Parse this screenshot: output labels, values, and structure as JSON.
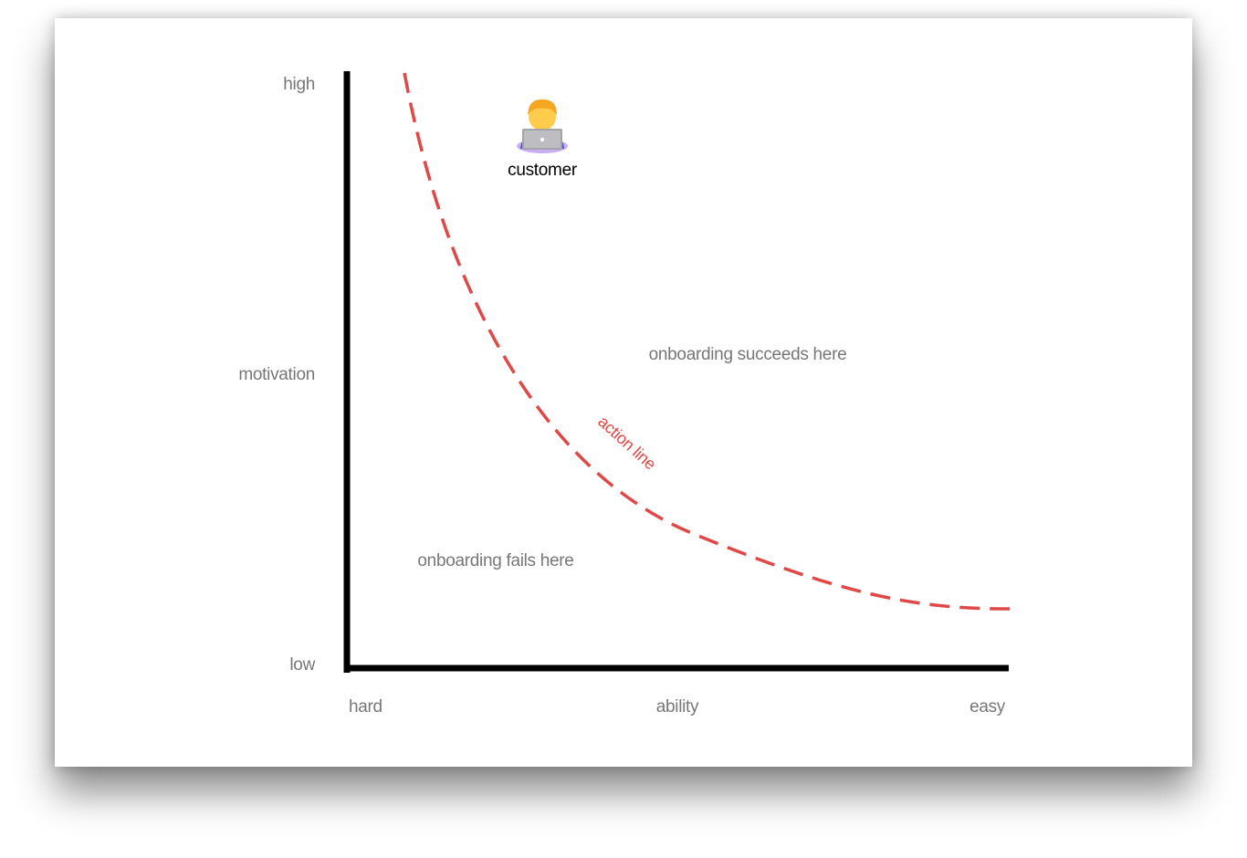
{
  "axes": {
    "y_high": "high",
    "y_label": "motivation",
    "y_low": "low",
    "x_low": "hard",
    "x_label": "ability",
    "x_high": "easy"
  },
  "regions": {
    "success": "onboarding succeeds here",
    "failure": "onboarding fails here"
  },
  "curve_label": "action line",
  "customer": "customer"
}
